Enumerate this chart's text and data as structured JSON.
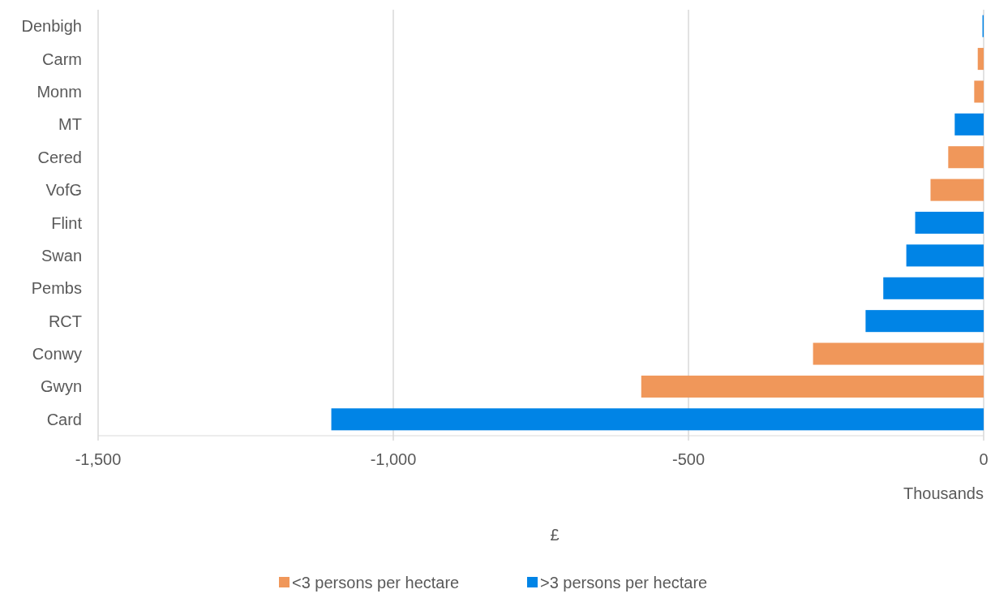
{
  "chart_data": {
    "type": "bar",
    "orientation": "horizontal",
    "xlabel": "£",
    "annotations": [
      "Thousands"
    ],
    "categories": [
      "Denbigh",
      "Carm",
      "Monm",
      "MT",
      "Cered",
      "VofG",
      "Flint",
      "Swan",
      "Pembs",
      "RCT",
      "Conwy",
      "Gwyn",
      "Card"
    ],
    "series": [
      {
        "name": "<3 persons per hectare",
        "color": "#f0975a",
        "values": [
          null,
          -10,
          -16,
          null,
          -60,
          -90,
          null,
          null,
          null,
          null,
          -289,
          -580,
          null
        ]
      },
      {
        "name": ">3 persons per hectare",
        "color": "#0084e6",
        "values": [
          -2,
          null,
          null,
          -49,
          null,
          null,
          -116,
          -131,
          -170,
          -200,
          null,
          null,
          -1105
        ]
      }
    ],
    "xlim": [
      -1500,
      0
    ],
    "xticks": [
      {
        "value": -1500,
        "label": "-1,500"
      },
      {
        "value": -1000,
        "label": "-1,000"
      },
      -500,
      0
    ],
    "grid": "x",
    "legend": "bottom"
  }
}
